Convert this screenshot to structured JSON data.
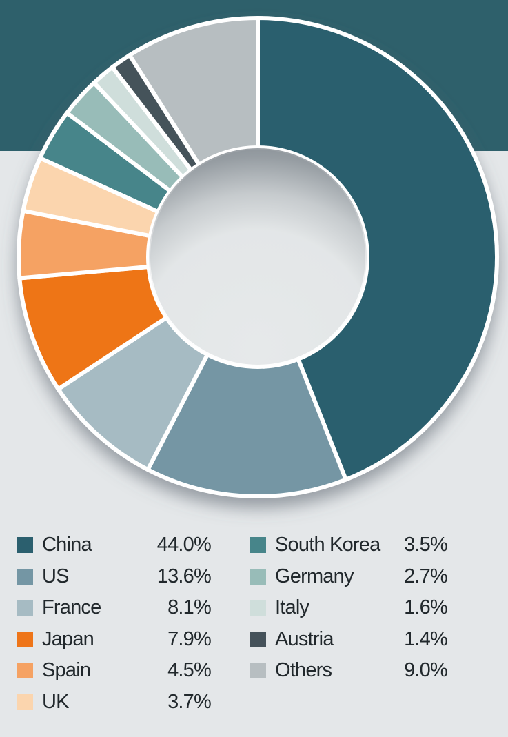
{
  "page": {
    "background_color": "#e4e7e9",
    "band_color": "#2e606b",
    "text_color": "#21282c"
  },
  "chart_data": {
    "type": "pie",
    "subtype": "donut",
    "title": "",
    "unit": "%",
    "start_angle_deg": 0,
    "direction": "clockwise",
    "inner_radius_ratio": 0.46,
    "separator_color": "#ffffff",
    "legend_position": "bottom, two columns",
    "series": [
      {
        "label": "China",
        "value": 44.0,
        "display": "44.0%",
        "color": "#2b5f6e"
      },
      {
        "label": "US",
        "value": 13.6,
        "display": "13.6%",
        "color": "#7496a4"
      },
      {
        "label": "France",
        "value": 8.1,
        "display": "8.1%",
        "color": "#a6bbc3"
      },
      {
        "label": "Japan",
        "value": 7.9,
        "display": "7.9%",
        "color": "#ee7519"
      },
      {
        "label": "Spain",
        "value": 4.5,
        "display": "4.5%",
        "color": "#f5a263"
      },
      {
        "label": "UK",
        "value": 3.7,
        "display": "3.7%",
        "color": "#fbd5ae"
      },
      {
        "label": "South Korea",
        "value": 3.5,
        "display": "3.5%",
        "color": "#47858a"
      },
      {
        "label": "Germany",
        "value": 2.7,
        "display": "2.7%",
        "color": "#98bcb8"
      },
      {
        "label": "Italy",
        "value": 1.6,
        "display": "1.6%",
        "color": "#cfdedb"
      },
      {
        "label": "Austria",
        "value": 1.4,
        "display": "1.4%",
        "color": "#45525a"
      },
      {
        "label": "Others",
        "value": 9.0,
        "display": "9.0%",
        "color": "#b7bec1"
      }
    ],
    "legend_columns": [
      [
        0,
        1,
        2,
        3,
        4,
        5
      ],
      [
        6,
        7,
        8,
        9,
        10
      ]
    ]
  }
}
